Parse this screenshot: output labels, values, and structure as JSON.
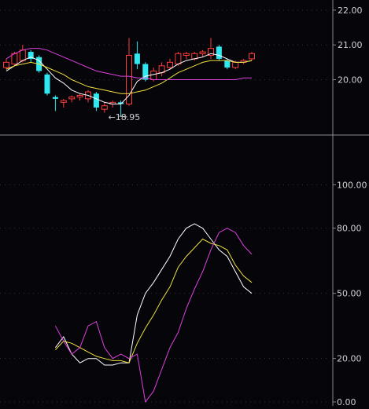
{
  "chart_data": [
    {
      "type": "candlestick",
      "panel": "price",
      "ylim": [
        18.5,
        22.2
      ],
      "y_ticks": [
        {
          "value": 22.0,
          "label": "22.00"
        },
        {
          "value": 21.0,
          "label": "21.00"
        },
        {
          "value": 20.0,
          "label": "20.00"
        }
      ],
      "grid": "dotted",
      "low_annotation": {
        "value": 18.95,
        "label": "18.95",
        "bar_index": 14
      },
      "candles": [
        {
          "o": 20.35,
          "c": 20.5,
          "h": 20.6,
          "l": 20.3
        },
        {
          "o": 20.45,
          "c": 20.75,
          "h": 20.8,
          "l": 20.4
        },
        {
          "o": 20.55,
          "c": 20.85,
          "h": 21.0,
          "l": 20.5
        },
        {
          "o": 20.8,
          "c": 20.6,
          "h": 20.85,
          "l": 20.5
        },
        {
          "o": 20.65,
          "c": 20.25,
          "h": 20.7,
          "l": 20.2
        },
        {
          "o": 20.15,
          "c": 19.6,
          "h": 20.2,
          "l": 19.55
        },
        {
          "o": 19.5,
          "c": 19.45,
          "h": 19.55,
          "l": 19.1
        },
        {
          "o": 19.35,
          "c": 19.4,
          "h": 19.45,
          "l": 19.2
        },
        {
          "o": 19.45,
          "c": 19.5,
          "h": 19.55,
          "l": 19.35
        },
        {
          "o": 19.5,
          "c": 19.55,
          "h": 19.6,
          "l": 19.4
        },
        {
          "o": 19.45,
          "c": 19.65,
          "h": 19.7,
          "l": 19.35
        },
        {
          "o": 19.6,
          "c": 19.2,
          "h": 19.65,
          "l": 19.1
        },
        {
          "o": 19.15,
          "c": 19.25,
          "h": 19.35,
          "l": 19.05
        },
        {
          "o": 19.3,
          "c": 19.35,
          "h": 19.4,
          "l": 19.2
        },
        {
          "o": 19.35,
          "c": 19.3,
          "h": 19.4,
          "l": 18.95
        },
        {
          "o": 19.3,
          "c": 20.7,
          "h": 21.2,
          "l": 19.25
        },
        {
          "o": 20.75,
          "c": 20.45,
          "h": 21.1,
          "l": 20.3
        },
        {
          "o": 20.45,
          "c": 20.0,
          "h": 20.5,
          "l": 19.95
        },
        {
          "o": 20.0,
          "c": 20.25,
          "h": 20.35,
          "l": 19.95
        },
        {
          "o": 20.2,
          "c": 20.4,
          "h": 20.5,
          "l": 20.1
        },
        {
          "o": 20.35,
          "c": 20.5,
          "h": 20.6,
          "l": 20.3
        },
        {
          "o": 20.45,
          "c": 20.75,
          "h": 20.8,
          "l": 20.4
        },
        {
          "o": 20.7,
          "c": 20.75,
          "h": 20.8,
          "l": 20.6
        },
        {
          "o": 20.6,
          "c": 20.75,
          "h": 20.8,
          "l": 20.55
        },
        {
          "o": 20.75,
          "c": 20.8,
          "h": 20.85,
          "l": 20.65
        },
        {
          "o": 20.7,
          "c": 20.9,
          "h": 21.2,
          "l": 20.6
        },
        {
          "o": 20.95,
          "c": 20.6,
          "h": 21.0,
          "l": 20.55
        },
        {
          "o": 20.55,
          "c": 20.35,
          "h": 20.6,
          "l": 20.3
        },
        {
          "o": 20.35,
          "c": 20.5,
          "h": 20.55,
          "l": 20.3
        },
        {
          "o": 20.5,
          "c": 20.55,
          "h": 20.6,
          "l": 20.45
        },
        {
          "o": 20.6,
          "c": 20.75,
          "h": 20.8,
          "l": 20.55
        }
      ],
      "series": [
        {
          "color": "#ffffff",
          "values": [
            20.25,
            20.4,
            20.55,
            20.65,
            20.55,
            20.3,
            20.05,
            19.9,
            19.7,
            19.6,
            19.55,
            19.45,
            19.35,
            19.3,
            19.3,
            19.55,
            19.95,
            20.1,
            20.15,
            20.2,
            20.3,
            20.45,
            20.55,
            20.6,
            20.65,
            20.75,
            20.7,
            20.6,
            20.5,
            20.5,
            20.55
          ]
        },
        {
          "color": "#f0e040",
          "values": [
            20.3,
            20.4,
            20.45,
            20.5,
            20.45,
            20.35,
            20.25,
            20.15,
            20.0,
            19.9,
            19.8,
            19.75,
            19.7,
            19.65,
            19.6,
            19.6,
            19.65,
            19.7,
            19.8,
            19.9,
            20.05,
            20.2,
            20.3,
            20.4,
            20.5,
            20.55,
            20.55,
            20.55,
            20.5,
            20.5,
            20.55
          ]
        },
        {
          "color": "#e040e0",
          "values": [
            20.6,
            20.75,
            20.85,
            20.9,
            20.9,
            20.85,
            20.75,
            20.65,
            20.55,
            20.45,
            20.35,
            20.25,
            20.2,
            20.15,
            20.1,
            20.1,
            20.05,
            20.05,
            20.0,
            20.0,
            20.0,
            20.0,
            20.0,
            20.0,
            20.0,
            20.0,
            20.0,
            20.0,
            20.0,
            20.05,
            20.05
          ]
        }
      ]
    },
    {
      "type": "line",
      "panel": "indicator",
      "ylim": [
        0,
        120
      ],
      "y_ticks": [
        {
          "value": 100,
          "label": "100.00"
        },
        {
          "value": 80,
          "label": "80.00"
        },
        {
          "value": 50,
          "label": "50.00"
        },
        {
          "value": 20,
          "label": "20.00"
        },
        {
          "value": 0,
          "label": "0.00"
        }
      ],
      "grid": "dotted",
      "series": [
        {
          "color": "#ffffff",
          "values": [
            null,
            null,
            null,
            null,
            null,
            null,
            25,
            30,
            22,
            18,
            20,
            20,
            17,
            17,
            18,
            18,
            40,
            50,
            55,
            61,
            67,
            75,
            80,
            82,
            80,
            75,
            70,
            67,
            60,
            53,
            50
          ]
        },
        {
          "color": "#f0e040",
          "values": [
            null,
            null,
            null,
            null,
            null,
            null,
            24,
            28,
            27,
            25,
            23,
            21,
            20,
            19,
            19,
            18,
            27,
            34,
            40,
            47,
            53,
            62,
            67,
            71,
            75,
            73,
            72,
            70,
            63,
            58,
            55
          ]
        },
        {
          "color": "#e040e0",
          "values": [
            null,
            null,
            null,
            null,
            null,
            null,
            35,
            28,
            22,
            25,
            35,
            37,
            25,
            20,
            22,
            20,
            22,
            0,
            5,
            15,
            25,
            32,
            43,
            52,
            60,
            70,
            78,
            80,
            78,
            72,
            68
          ]
        }
      ]
    }
  ]
}
